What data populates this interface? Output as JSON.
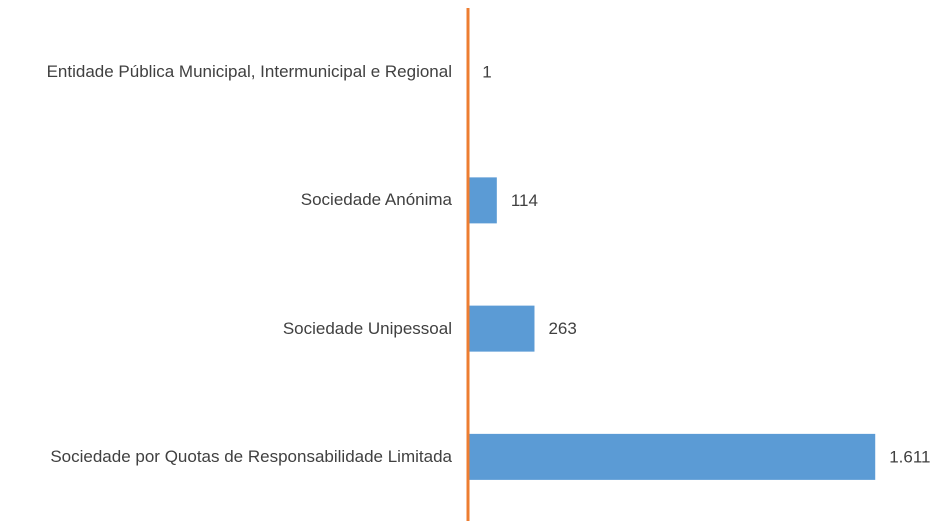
{
  "chart_data": {
    "type": "bar",
    "orientation": "horizontal",
    "categories": [
      "Entidade Pública Municipal, Intermunicipal e Regional",
      "Sociedade Anónima",
      "Sociedade Unipessoal",
      "Sociedade por Quotas de Responsabilidade Limitada"
    ],
    "values": [
      1,
      114,
      263,
      1611
    ],
    "value_labels": [
      "1",
      "114",
      "263",
      "1.611"
    ],
    "color": "#5b9bd5",
    "axis_color": "#ed7d31",
    "xlim": [
      0,
      1800
    ]
  }
}
